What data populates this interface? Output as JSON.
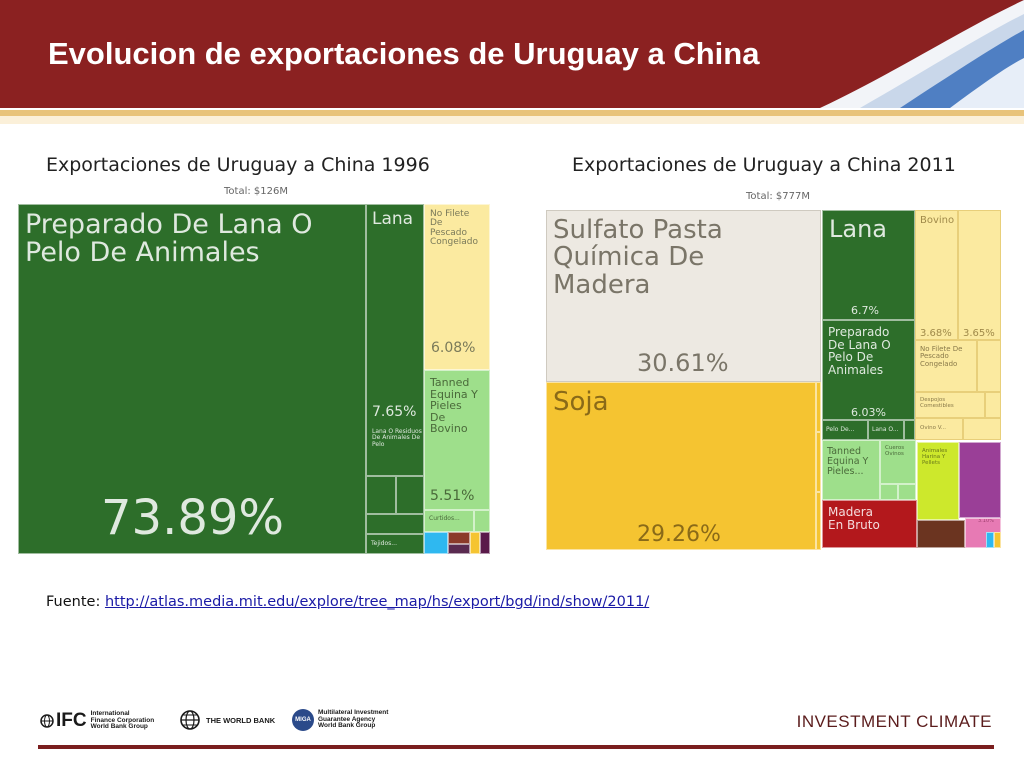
{
  "header": {
    "title": "Evolucion de exportaciones de Uruguay a China"
  },
  "chart_left": {
    "heading": "Exportaciones de Uruguay a China 1996",
    "total": "Total: $126M",
    "labels": {
      "t1_name": "Preparado De Lana O\nPelo De Animales",
      "t1_pct": "73.89%",
      "t2_name": "Lana",
      "t2_pct": "7.65%",
      "t3_name": "Lana O Residuos\nDe Animales De\nPelo",
      "t4_name": "Tejidos...",
      "t5_name": "No Filete\nDe\nPescado\nCongelado",
      "t5_pct": "6.08%",
      "t6_name": "Tanned\nEquina Y\nPieles\nDe\nBovino",
      "t6_pct": "5.51%",
      "t7_name": "Curtidos..."
    }
  },
  "chart_right": {
    "heading": "Exportaciones de Uruguay a China 2011",
    "total": "Total: $777M",
    "labels": {
      "s1_name": "Sulfato Pasta\nQuímica De\nMadera",
      "s1_pct": "30.61%",
      "s2_name": "Soja",
      "s2_pct": "29.26%",
      "s3_name": "Lana",
      "s3_pct": "6.7%",
      "s4_name": "Preparado\nDe Lana O\nPelo De\nAnimales",
      "s4_pct": "6.03%",
      "s5_name": "Pelo De...",
      "s6_name": "Lana O...",
      "s7_name": "Tanned\nEquina Y\nPieles...",
      "s8_name": "Cueros\nOvinos",
      "s9_name": "Madera\nEn Bruto",
      "s10_name": "Bovino",
      "s10_pct": "3.68%",
      "s11_pct": "3.65%",
      "s12_name": "No Filete De\nPescado\nCongelado",
      "s13_name": "Despojos\nComestibles",
      "s14_name": "Ovino V...",
      "s15_name": "Animales\nHarina Y\nPellets",
      "s16_name": "3.10%"
    }
  },
  "source": {
    "label": "Fuente:",
    "url": "http://atlas.media.mit.edu/explore/tree_map/hs/export/bgd/ind/show/2011/"
  },
  "footer": {
    "ifc_mark": "IFC",
    "ifc_text": "International\nFinance Corporation\nWorld Bank Group",
    "wb_text": "THE WORLD BANK",
    "miga_mark": "MIGA",
    "miga_text": "Multilateral Investment\nGuarantee Agency\nWorld Bank Group",
    "tagline": "INVESTMENT CLIMATE"
  },
  "colors": {
    "header": "#8b2121",
    "animal_green": "#2d6e2a",
    "wood_beige": "#ede9e2",
    "soy_yellow": "#f5c431",
    "fish_yellow": "#fbeaa0",
    "hide_green": "#9edf8b",
    "timber_red": "#b3181c"
  }
}
